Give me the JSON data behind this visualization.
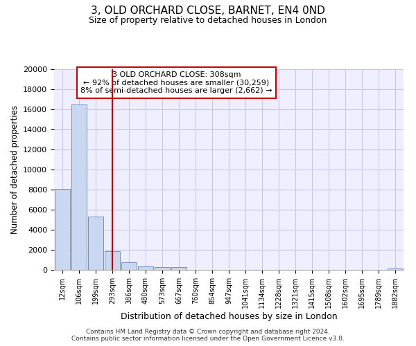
{
  "title": "3, OLD ORCHARD CLOSE, BARNET, EN4 0ND",
  "subtitle": "Size of property relative to detached houses in London",
  "xlabel": "Distribution of detached houses by size in London",
  "ylabel": "Number of detached properties",
  "bar_color": "#c8d8f0",
  "bar_edge_color": "#7090c8",
  "bar_values": [
    8100,
    16500,
    5300,
    1850,
    750,
    350,
    280,
    250,
    0,
    0,
    0,
    0,
    0,
    0,
    0,
    0,
    0,
    0,
    0,
    0,
    150
  ],
  "x_labels": [
    "12sqm",
    "106sqm",
    "199sqm",
    "293sqm",
    "386sqm",
    "480sqm",
    "573sqm",
    "667sqm",
    "760sqm",
    "854sqm",
    "947sqm",
    "1041sqm",
    "1134sqm",
    "1228sqm",
    "1321sqm",
    "1415sqm",
    "1508sqm",
    "1602sqm",
    "1695sqm",
    "1789sqm",
    "1882sqm"
  ],
  "vline_x": 3.0,
  "vline_color": "#cc0000",
  "annotation_title": "3 OLD ORCHARD CLOSE: 308sqm",
  "annotation_line1": "← 92% of detached houses are smaller (30,259)",
  "annotation_line2": "8% of semi-detached houses are larger (2,662) →",
  "annotation_box_color": "#cc0000",
  "ylim": [
    0,
    20000
  ],
  "yticks": [
    0,
    2000,
    4000,
    6000,
    8000,
    10000,
    12000,
    14000,
    16000,
    18000,
    20000
  ],
  "grid_color": "#c8c8e0",
  "background_color": "#eeeeff",
  "footer_line1": "Contains HM Land Registry data © Crown copyright and database right 2024.",
  "footer_line2": "Contains public sector information licensed under the Open Government Licence v3.0."
}
